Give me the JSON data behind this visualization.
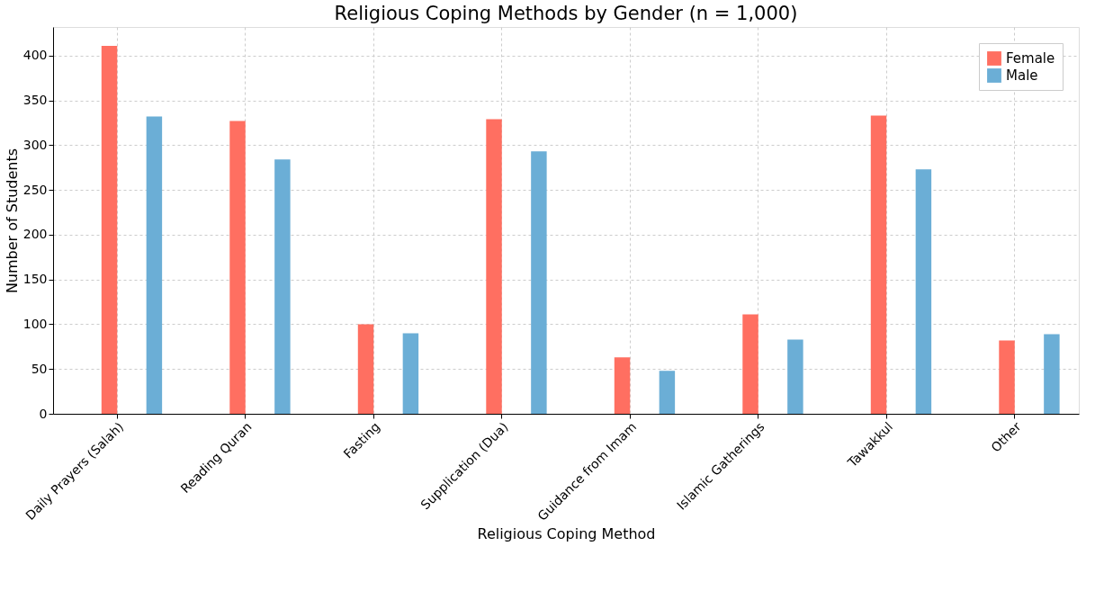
{
  "chart_data": {
    "type": "bar",
    "title": "Religious Coping Methods by Gender (n = 1,000)",
    "xlabel": "Religious Coping Method",
    "ylabel": "Number of Students",
    "categories": [
      "Daily Prayers (Salah)",
      "Reading Quran",
      "Fasting",
      "Supplication (Dua)",
      "Guidance from Imam",
      "Islamic Gatherings",
      "Tawakkul",
      "Other"
    ],
    "series": [
      {
        "name": "Female",
        "color": "#ff6f61",
        "values": [
          411,
          327,
          100,
          329,
          63,
          111,
          333,
          82
        ]
      },
      {
        "name": "Male",
        "color": "#6baed6",
        "values": [
          332,
          284,
          90,
          293,
          48,
          83,
          273,
          89
        ]
      }
    ],
    "ylim": [
      0,
      432
    ],
    "yticks": [
      0,
      50,
      100,
      150,
      200,
      250,
      300,
      350,
      400
    ],
    "grid": true,
    "legend": "top right"
  }
}
